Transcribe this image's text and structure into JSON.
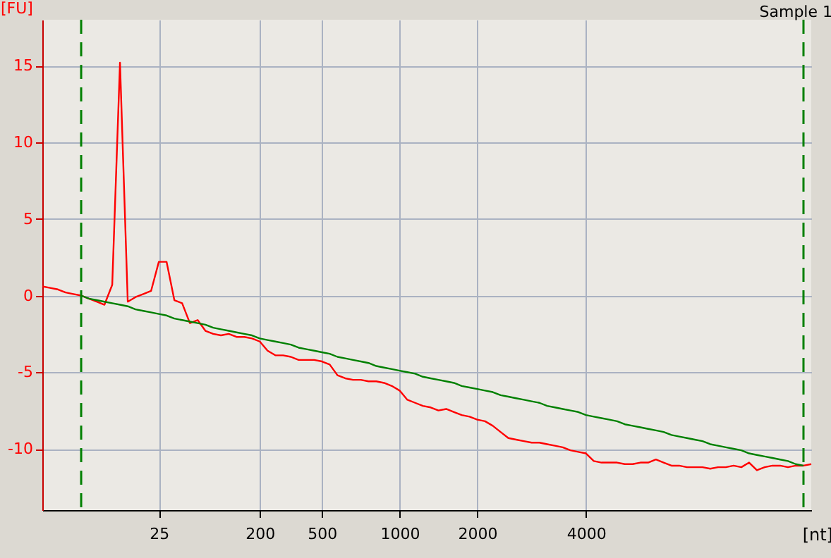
{
  "chart_data": {
    "type": "line",
    "title": "Sample 1",
    "xlabel": "[nt]",
    "ylabel": "[FU]",
    "categories": [
      null,
      null,
      null,
      null,
      null,
      null,
      null,
      null,
      null,
      null,
      null,
      null,
      null,
      null,
      null,
      "25",
      null,
      null,
      null,
      null,
      null,
      null,
      null,
      null,
      null,
      null,
      null,
      null,
      "200",
      null,
      null,
      null,
      null,
      null,
      null,
      null,
      "500",
      null,
      null,
      null,
      null,
      null,
      null,
      null,
      null,
      null,
      "1000",
      null,
      null,
      null,
      null,
      null,
      null,
      null,
      null,
      null,
      "2000",
      null,
      null,
      null,
      null,
      null,
      null,
      null,
      null,
      null,
      null,
      null,
      null,
      null,
      "4000",
      null,
      null,
      null,
      null,
      null,
      null,
      null,
      null,
      null,
      null,
      null,
      null,
      null,
      null,
      null,
      null,
      null,
      null,
      null,
      null,
      null,
      null,
      null,
      null,
      null,
      null,
      null,
      null,
      null
    ],
    "ylim": [
      -14,
      18
    ],
    "yticks": [
      -10,
      -5,
      0,
      5,
      10,
      15
    ],
    "grid": true,
    "marker": "none",
    "line_style": "solid",
    "series": [
      {
        "color": "#ff0000",
        "values": [
          0.6,
          0.5,
          0.4,
          0.2,
          0.1,
          0,
          -0.2,
          -0.4,
          -0.6,
          0.7,
          15.2,
          -0.4,
          -0.1,
          0.1,
          0.3,
          2.2,
          2.2,
          -0.3,
          -0.5,
          -1.8,
          -1.6,
          -2.3,
          -2.5,
          -2.6,
          -2.5,
          -2.7,
          -2.7,
          -2.8,
          -3.0,
          -3.6,
          -3.9,
          -3.9,
          -4.0,
          -4.2,
          -4.2,
          -4.2,
          -4.3,
          -4.5,
          -5.2,
          -5.4,
          -5.5,
          -5.5,
          -5.6,
          -5.6,
          -5.7,
          -5.9,
          -6.2,
          -6.8,
          -7.0,
          -7.2,
          -7.3,
          -7.5,
          -7.4,
          -7.6,
          -7.8,
          -7.9,
          -8.1,
          -8.2,
          -8.5,
          -8.9,
          -9.3,
          -9.4,
          -9.5,
          -9.6,
          -9.6,
          -9.7,
          -9.8,
          -9.9,
          -10.1,
          -10.2,
          -10.3,
          -10.8,
          -10.9,
          -10.9,
          -10.9,
          -11.0,
          -11.0,
          -10.9,
          -10.9,
          -10.7,
          -10.9,
          -11.1,
          -11.1,
          -11.2,
          -11.2,
          -11.2,
          -11.3,
          -11.2,
          -11.2,
          -11.1,
          -11.2,
          -10.9,
          -11.4,
          -11.2,
          -11.1,
          -11.1,
          -11.2,
          -11.1,
          -11.1,
          -11.0
        ]
      },
      {
        "color": "#008000",
        "values": [
          null,
          null,
          null,
          null,
          null,
          0.0,
          -0.2,
          -0.3,
          -0.4,
          -0.5,
          -0.6,
          -0.7,
          -0.9,
          -1.0,
          -1.1,
          -1.2,
          -1.3,
          -1.5,
          -1.6,
          -1.7,
          -1.8,
          -1.9,
          -2.1,
          -2.2,
          -2.3,
          -2.4,
          -2.5,
          -2.6,
          -2.8,
          -2.9,
          -3.0,
          -3.1,
          -3.2,
          -3.4,
          -3.5,
          -3.6,
          -3.7,
          -3.8,
          -4.0,
          -4.1,
          -4.2,
          -4.3,
          -4.4,
          -4.6,
          -4.7,
          -4.8,
          -4.9,
          -5.0,
          -5.1,
          -5.3,
          -5.4,
          -5.5,
          -5.6,
          -5.7,
          -5.9,
          -6.0,
          -6.1,
          -6.2,
          -6.3,
          -6.5,
          -6.6,
          -6.7,
          -6.8,
          -6.9,
          -7.0,
          -7.2,
          -7.3,
          -7.4,
          -7.5,
          -7.6,
          -7.8,
          -7.9,
          -8.0,
          -8.1,
          -8.2,
          -8.4,
          -8.5,
          -8.6,
          -8.7,
          -8.8,
          -8.9,
          -9.1,
          -9.2,
          -9.3,
          -9.4,
          -9.5,
          -9.7,
          -9.8,
          -9.9,
          -10.0,
          -10.1,
          -10.3,
          -10.4,
          -10.5,
          -10.6,
          -10.7,
          -10.8,
          -11.0,
          -11.1,
          null
        ]
      }
    ]
  }
}
